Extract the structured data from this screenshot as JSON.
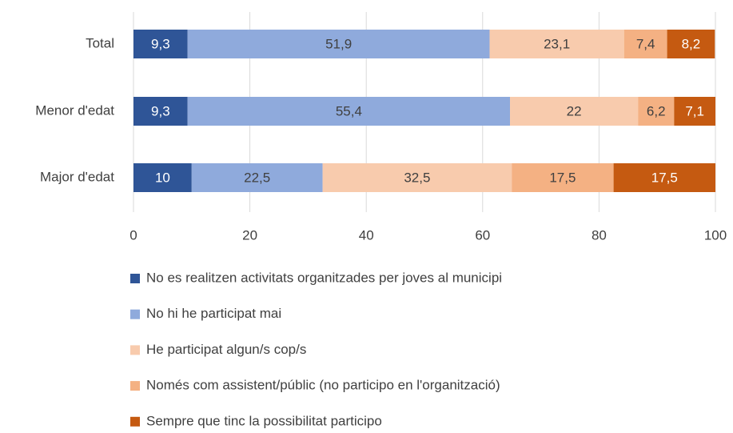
{
  "chart_data": {
    "type": "stacked_bar_horizontal",
    "categories": [
      "Total",
      "Menor d'edat",
      "Major d'edat"
    ],
    "series": [
      {
        "name": "No es realitzen activitats organitzades per joves al municipi",
        "color": "#2f5597",
        "values": [
          9.3,
          9.3,
          10
        ],
        "value_labels": [
          "9,3",
          "9,3",
          "10"
        ]
      },
      {
        "name": "No hi he participat mai",
        "color": "#8faadc",
        "values": [
          51.9,
          55.4,
          22.5
        ],
        "value_labels": [
          "51,9",
          "55,4",
          "22,5"
        ]
      },
      {
        "name": "He participat algun/s cop/s",
        "color": "#f8cbad",
        "values": [
          23.1,
          22,
          32.5
        ],
        "value_labels": [
          "23,1",
          "22",
          "32,5"
        ]
      },
      {
        "name": "Només com assistent/públic (no participo en l'organització)",
        "color": "#f4b183",
        "values": [
          7.4,
          6.2,
          17.5
        ],
        "value_labels": [
          "7,4",
          "6,2",
          "17,5"
        ]
      },
      {
        "name": "Sempre que tinc la possibilitat participo",
        "color": "#c55a11",
        "values": [
          8.2,
          7.1,
          17.5
        ],
        "value_labels": [
          "8,2",
          "7,1",
          "17,5"
        ]
      }
    ],
    "xlim": [
      0,
      100
    ],
    "xticks": [
      0,
      20,
      40,
      60,
      80,
      100
    ],
    "grid": true,
    "legend": "bottom"
  }
}
